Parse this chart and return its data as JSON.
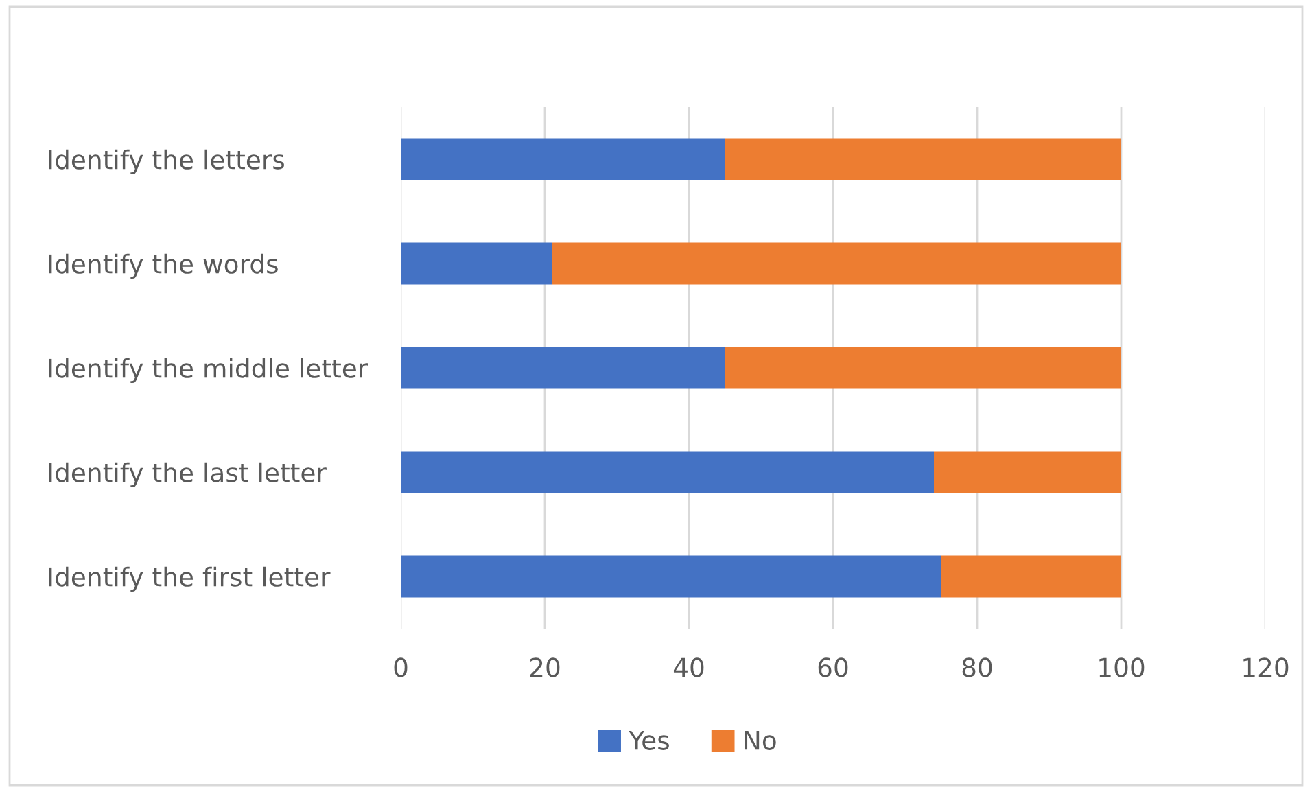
{
  "chart_data": {
    "type": "bar",
    "orientation": "horizontal",
    "stacked": true,
    "categories": [
      "Identify the letters",
      "Identify the words",
      "Identify the middle letter",
      "Identify the last letter",
      "Identify the first letter"
    ],
    "series": [
      {
        "name": "Yes",
        "color": "#4472c4",
        "values": [
          45,
          21,
          45,
          74,
          75
        ]
      },
      {
        "name": "No",
        "color": "#ed7d31",
        "values": [
          55,
          79,
          55,
          26,
          25
        ]
      }
    ],
    "xlim": [
      0,
      120
    ],
    "xticks": [
      0,
      20,
      40,
      60,
      80,
      100,
      120
    ],
    "grid": "x",
    "legend": "bottom"
  }
}
